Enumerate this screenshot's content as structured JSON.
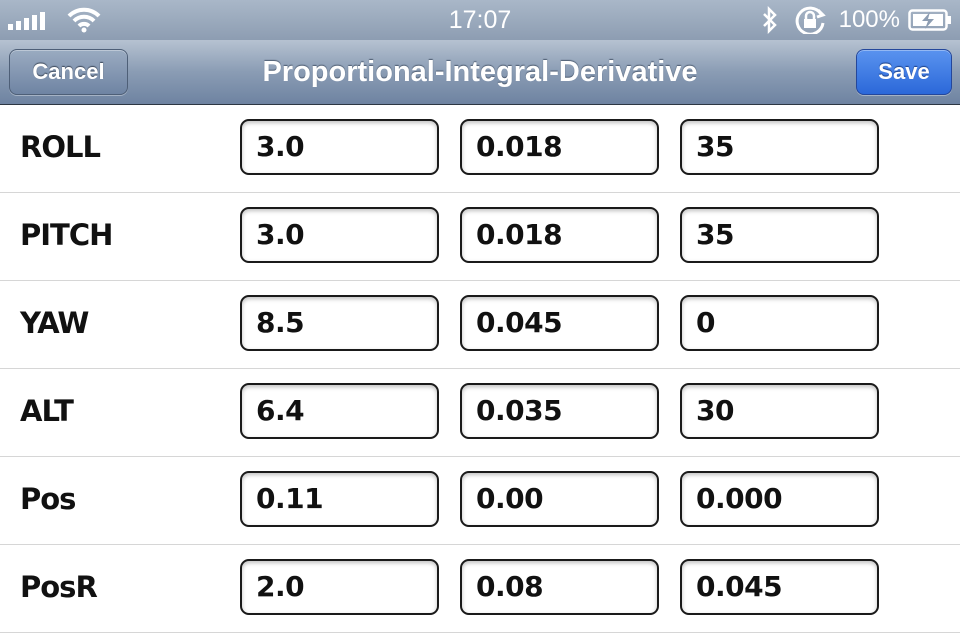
{
  "status_bar": {
    "time": "17:07",
    "battery": "100%"
  },
  "nav": {
    "title": "Proportional-Integral-Derivative",
    "cancel_label": "Cancel",
    "save_label": "Save"
  },
  "rows": [
    {
      "label": "ROLL",
      "p": "3.0",
      "i": "0.018",
      "d": "35"
    },
    {
      "label": "PITCH",
      "p": "3.0",
      "i": "0.018",
      "d": "35"
    },
    {
      "label": "YAW",
      "p": "8.5",
      "i": "0.045",
      "d": "0"
    },
    {
      "label": "ALT",
      "p": "6.4",
      "i": "0.035",
      "d": "30"
    },
    {
      "label": "Pos",
      "p": "0.11",
      "i": "0.00",
      "d": "0.000"
    },
    {
      "label": "PosR",
      "p": "2.0",
      "i": "0.08",
      "d": "0.045"
    }
  ],
  "icons": [
    "signal-icon",
    "wifi-icon",
    "bluetooth-icon",
    "rotation-lock-icon",
    "battery-charging-icon"
  ]
}
